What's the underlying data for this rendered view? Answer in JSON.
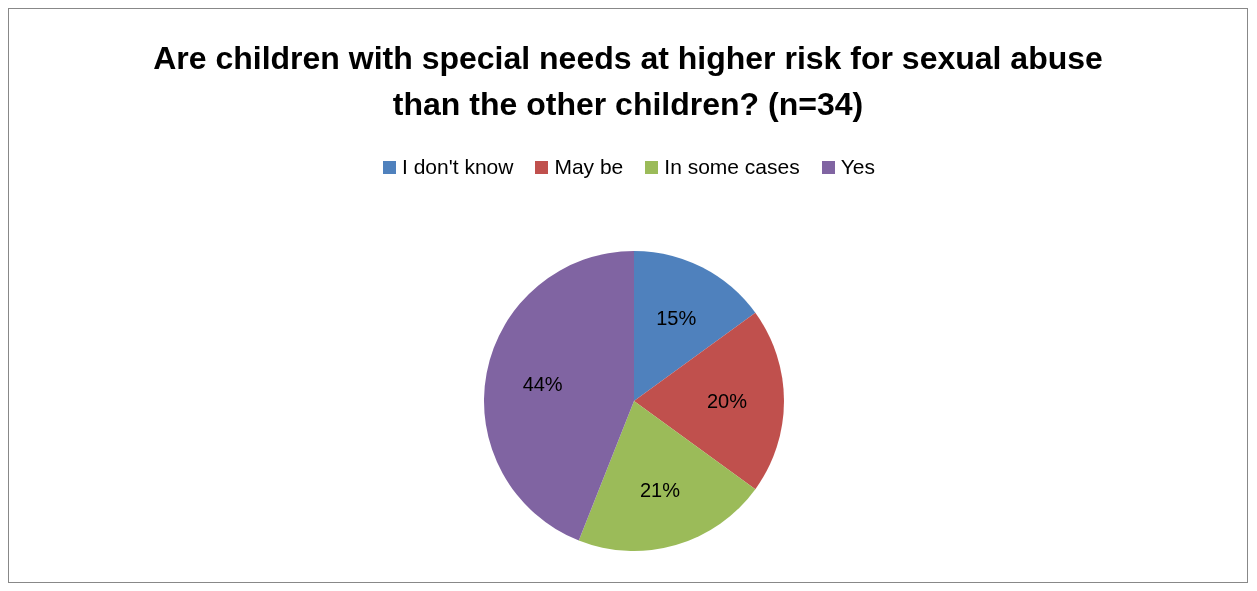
{
  "chart_data": {
    "type": "pie",
    "title": "Are children with special needs at higher risk for sexual abuse than the other children? (n=34)",
    "categories": [
      "I don't know",
      "May be",
      "In some cases",
      "Yes"
    ],
    "values": [
      15,
      20,
      21,
      44
    ],
    "colors": [
      "#4f81bd",
      "#c0504d",
      "#9bbb59",
      "#8064a2"
    ],
    "value_labels": [
      "15%",
      "20%",
      "21%",
      "44%"
    ],
    "legend": "top"
  }
}
